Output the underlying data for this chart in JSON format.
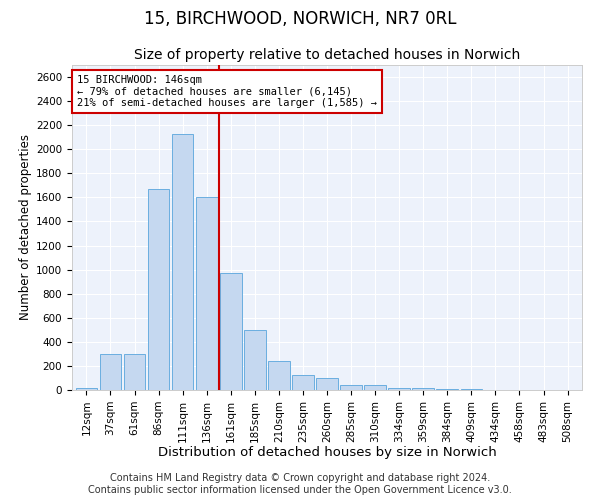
{
  "title": "15, BIRCHWOOD, NORWICH, NR7 0RL",
  "subtitle": "Size of property relative to detached houses in Norwich",
  "xlabel": "Distribution of detached houses by size in Norwich",
  "ylabel": "Number of detached properties",
  "categories": [
    "12sqm",
    "37sqm",
    "61sqm",
    "86sqm",
    "111sqm",
    "136sqm",
    "161sqm",
    "185sqm",
    "210sqm",
    "235sqm",
    "260sqm",
    "285sqm",
    "310sqm",
    "334sqm",
    "359sqm",
    "384sqm",
    "409sqm",
    "434sqm",
    "458sqm",
    "483sqm",
    "508sqm"
  ],
  "values": [
    20,
    295,
    295,
    1670,
    2130,
    1600,
    970,
    500,
    245,
    125,
    100,
    40,
    40,
    18,
    14,
    8,
    5,
    4,
    4,
    3,
    3
  ],
  "bar_color": "#c5d8f0",
  "bar_edge_color": "#6aaee0",
  "vline_x_index": 5.5,
  "vline_color": "#cc0000",
  "annotation_text": "15 BIRCHWOOD: 146sqm\n← 79% of detached houses are smaller (6,145)\n21% of semi-detached houses are larger (1,585) →",
  "annotation_box_color": "#ffffff",
  "annotation_box_edge_color": "#cc0000",
  "ylim": [
    0,
    2700
  ],
  "yticks": [
    0,
    200,
    400,
    600,
    800,
    1000,
    1200,
    1400,
    1600,
    1800,
    2000,
    2200,
    2400,
    2600
  ],
  "footer_line1": "Contains HM Land Registry data © Crown copyright and database right 2024.",
  "footer_line2": "Contains public sector information licensed under the Open Government Licence v3.0.",
  "bg_color": "#edf2fb",
  "plot_bg_color": "#edf2fb",
  "title_fontsize": 12,
  "subtitle_fontsize": 10,
  "xlabel_fontsize": 9.5,
  "ylabel_fontsize": 8.5,
  "tick_fontsize": 7.5,
  "footer_fontsize": 7
}
